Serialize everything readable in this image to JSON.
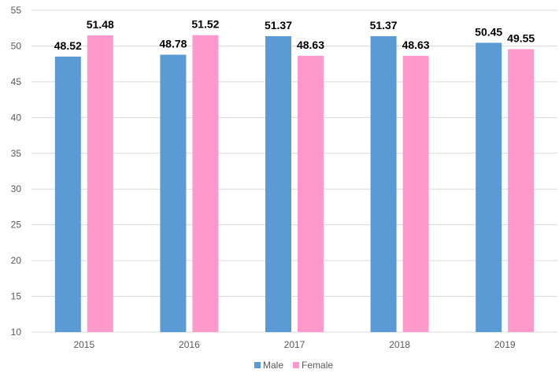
{
  "chart_data": {
    "type": "bar",
    "categories": [
      "2015",
      "2016",
      "2017",
      "2018",
      "2019"
    ],
    "series": [
      {
        "name": "Male",
        "values": [
          48.52,
          48.78,
          51.37,
          51.37,
          50.45
        ],
        "color": "#5b9bd5",
        "labels": [
          "48.52",
          "48.78",
          "51.37",
          "51.37",
          "50.45"
        ]
      },
      {
        "name": "Female",
        "values": [
          51.48,
          51.52,
          48.63,
          48.63,
          49.55
        ],
        "color": "#ff99cc",
        "labels": [
          "51.48",
          "51.52",
          "48.63",
          "48.63",
          "49.55"
        ]
      }
    ],
    "ylim": [
      10,
      55
    ],
    "yticks": [
      "10",
      "15",
      "20",
      "25",
      "30",
      "35",
      "40",
      "45",
      "50",
      "55"
    ],
    "grid": true,
    "legend_position": "bottom"
  }
}
